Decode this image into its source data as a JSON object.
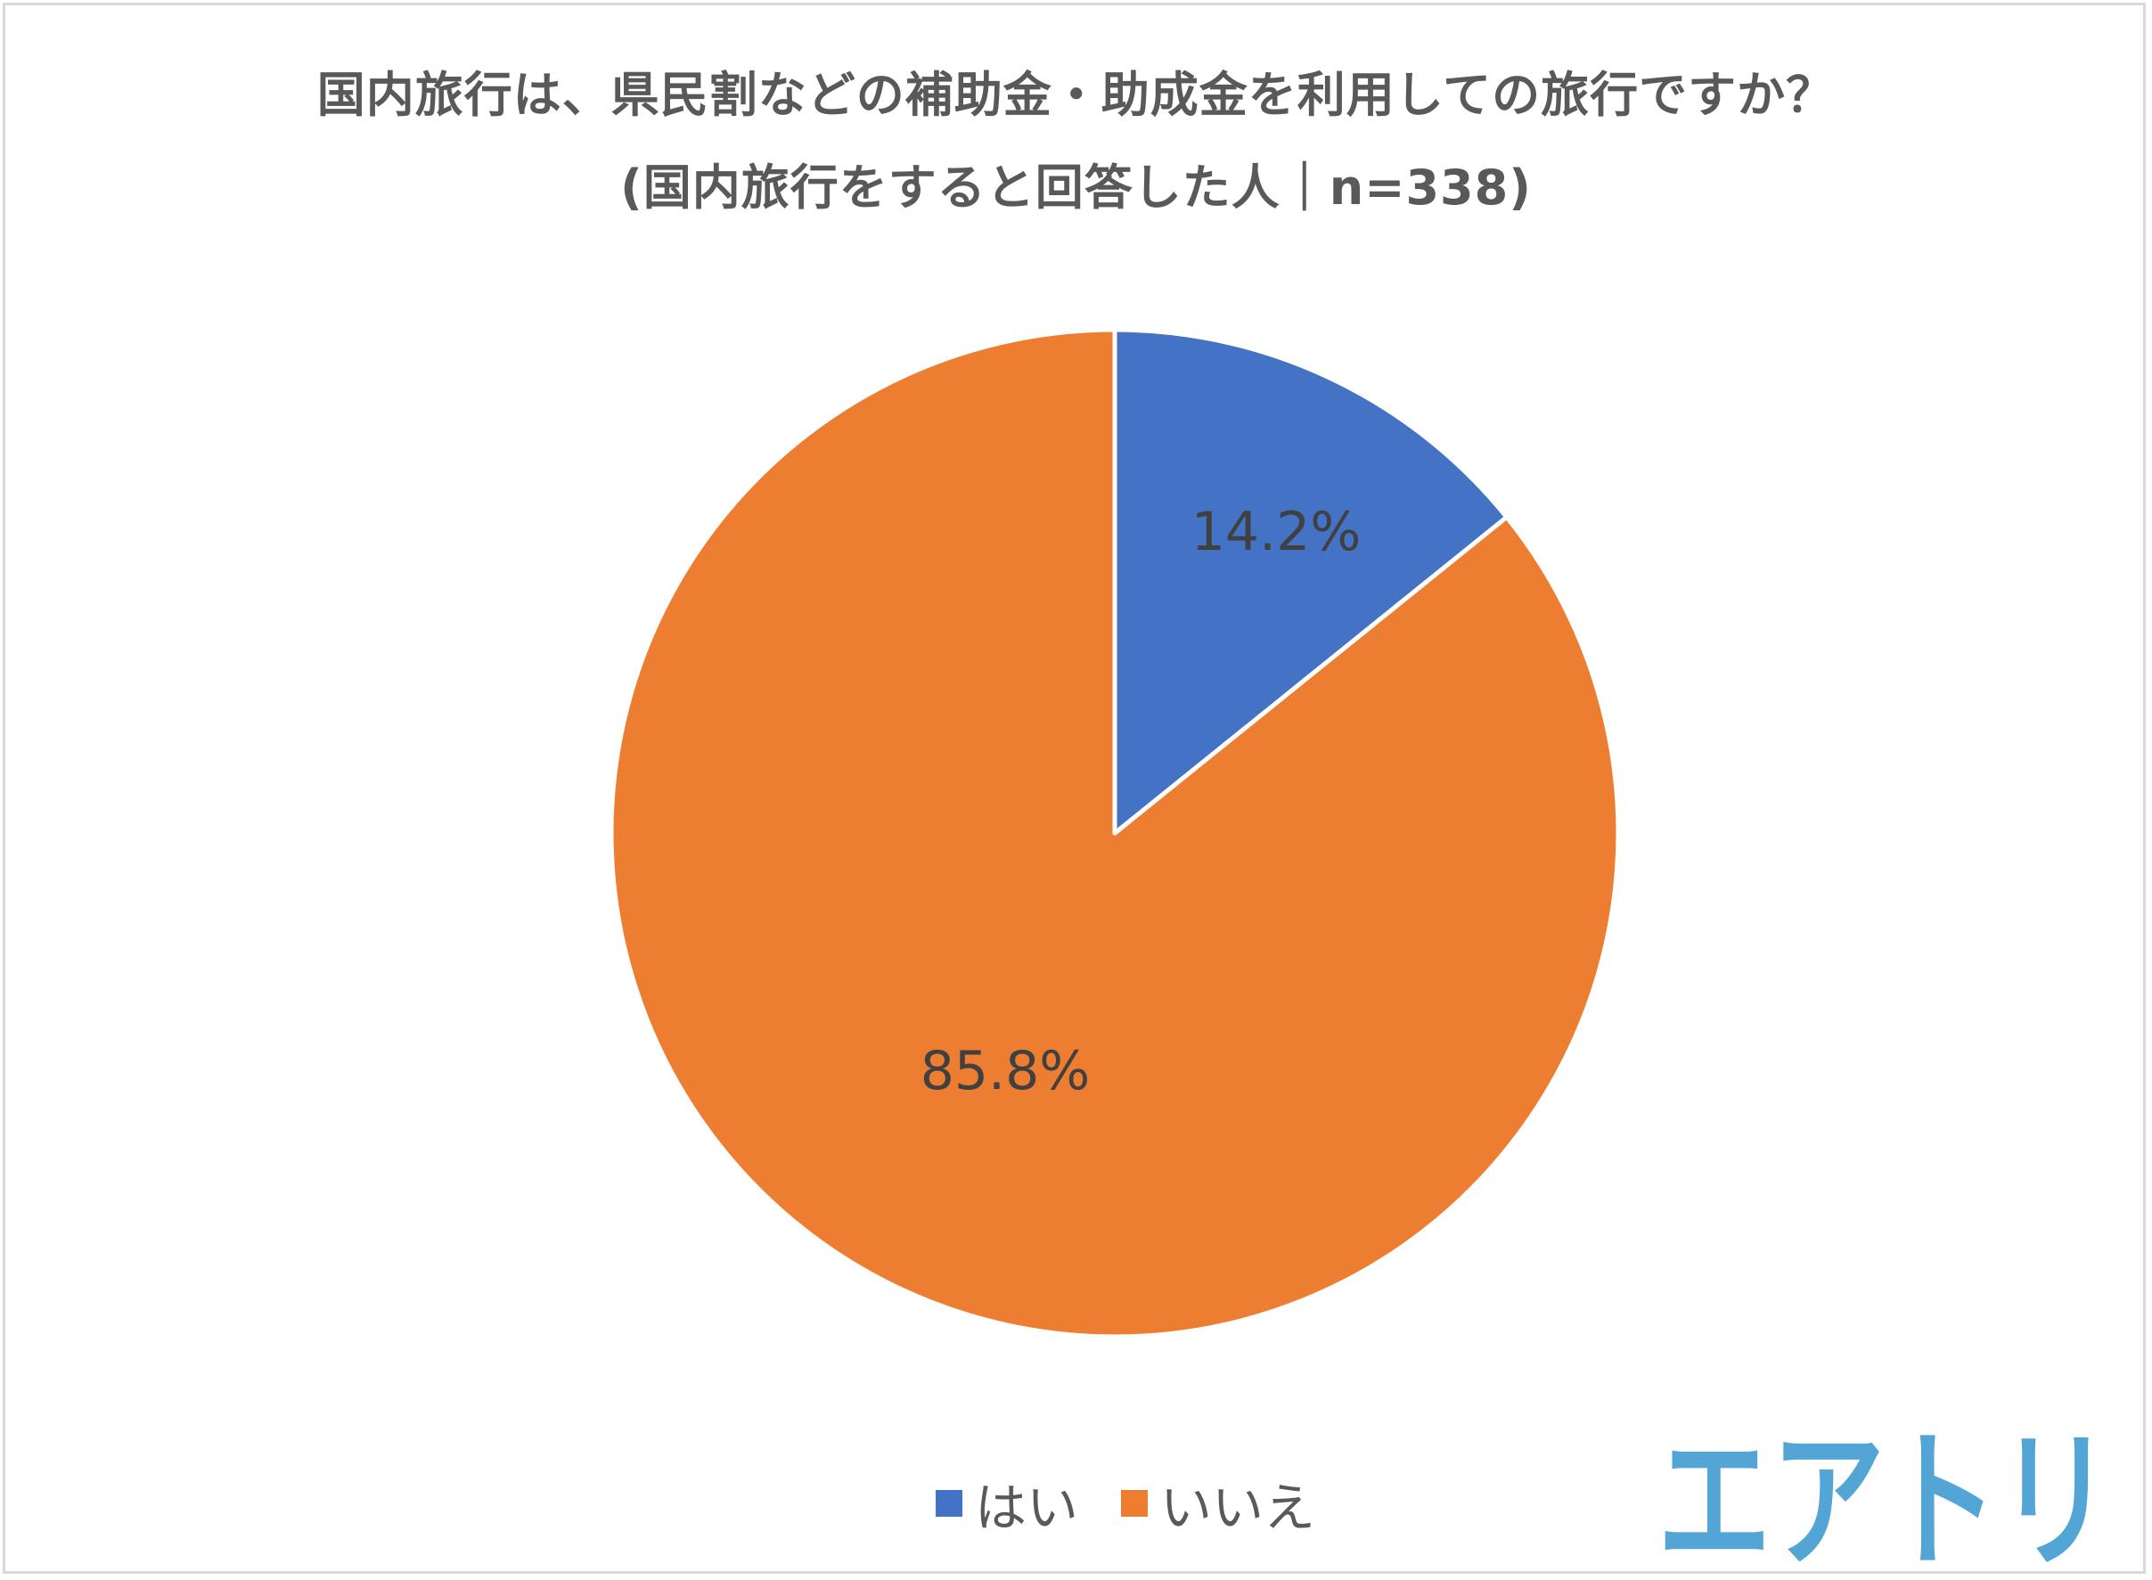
{
  "chart_data": {
    "type": "pie",
    "title": "国内旅行は、県民割などの補助金・助成金を利用しての旅行ですか？",
    "subtitle": "(国内旅行をすると回答した人｜n=338)",
    "categories": [
      "はい",
      "いいえ"
    ],
    "values": [
      14.2,
      85.8
    ],
    "data_labels": [
      "14.2%",
      "85.8%"
    ],
    "colors": [
      "#4472C4",
      "#ED7D31"
    ],
    "start_angle": "top, clockwise",
    "legend_position": "bottom"
  },
  "logo": {
    "text": "エアトリ",
    "color": "#52A5D5"
  }
}
